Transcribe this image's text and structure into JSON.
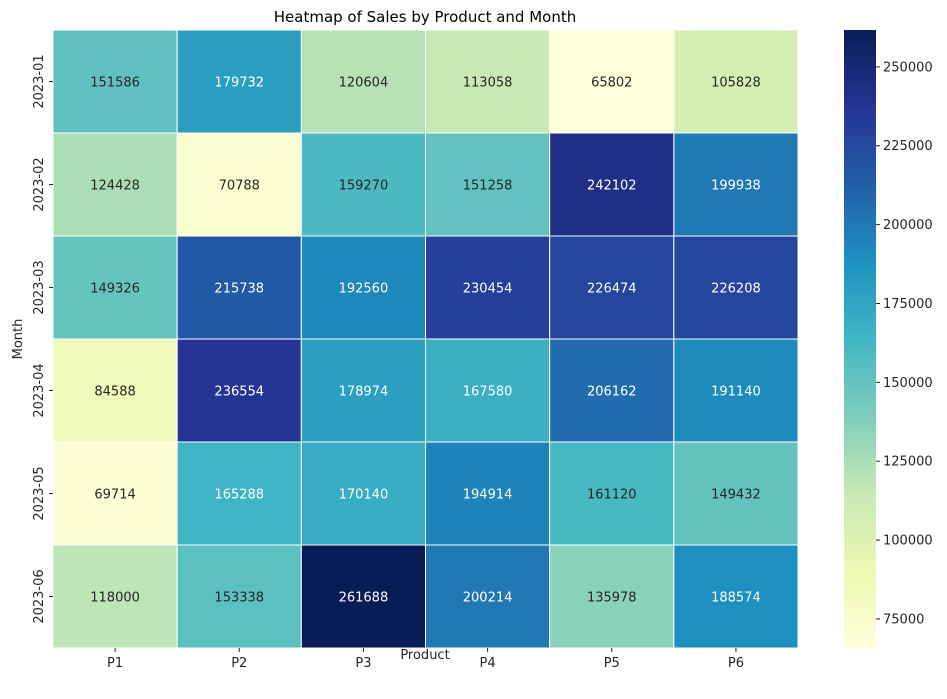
{
  "chart_data": {
    "type": "heatmap",
    "title": "Heatmap of Sales by Product and Month",
    "xlabel": "Product",
    "ylabel": "Month",
    "x_categories": [
      "P1",
      "P2",
      "P3",
      "P4",
      "P5",
      "P6"
    ],
    "y_categories": [
      "2023-01",
      "2023-02",
      "2023-03",
      "2023-04",
      "2023-05",
      "2023-06"
    ],
    "values": [
      [
        151586,
        179732,
        120604,
        113058,
        65802,
        105828
      ],
      [
        124428,
        70788,
        159270,
        151258,
        242102,
        199938
      ],
      [
        149326,
        215738,
        192560,
        230454,
        226474,
        226208
      ],
      [
        84588,
        236554,
        178974,
        167580,
        206162,
        191140
      ],
      [
        69714,
        165288,
        170140,
        194914,
        161120,
        149432
      ],
      [
        118000,
        153338,
        261688,
        200214,
        135978,
        188574
      ]
    ],
    "colormap": "YlGnBu",
    "colorbar": {
      "range": [
        65802,
        261688
      ],
      "ticks": [
        75000,
        100000,
        125000,
        150000,
        175000,
        200000,
        225000,
        250000
      ]
    }
  }
}
